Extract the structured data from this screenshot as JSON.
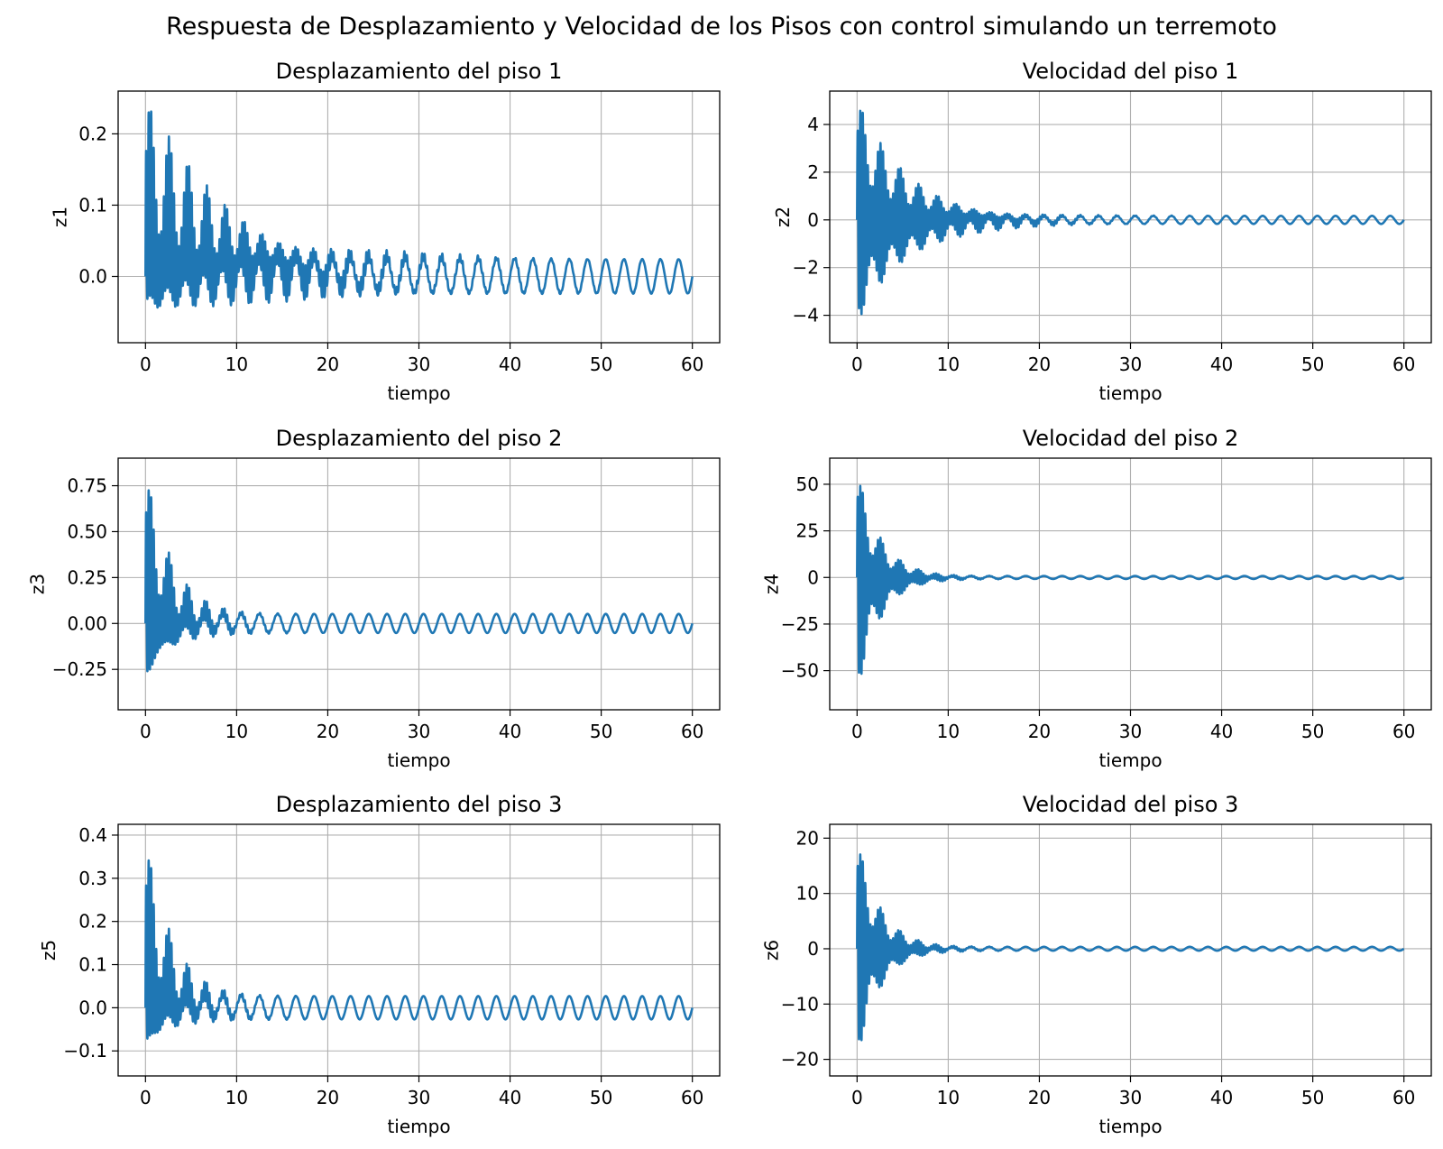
{
  "figure_title": "Respuesta de Desplazamiento y Velocidad de los Pisos con control simulando un terremoto",
  "colors": {
    "series": "#1f77b4",
    "grid": "#b0b0b0",
    "axes": "#000000"
  },
  "chart_data": [
    {
      "type": "line",
      "title": "Desplazamiento del piso 1",
      "xlabel": "tiempo",
      "ylabel": "z1",
      "xlim": [
        -3,
        63
      ],
      "ylim": [
        -0.093,
        0.26
      ],
      "grid": true,
      "xticks": [
        0,
        10,
        20,
        30,
        40,
        50,
        60
      ],
      "xtick_labels": [
        "0",
        "10",
        "20",
        "30",
        "40",
        "50",
        "60"
      ],
      "yticks": [
        0.0,
        0.1,
        0.2
      ],
      "ytick_labels": [
        "0.0",
        "0.1",
        "0.2"
      ],
      "series": [
        {
          "x_range": [
            0,
            60
          ],
          "initial_max": 0.25,
          "initial_min": -0.078,
          "steady_amplitude": 0.024,
          "steady_offset": 0.0,
          "steady_period": 2.0,
          "decay_time": 10.0
        }
      ]
    },
    {
      "type": "line",
      "title": "Velocidad del piso 1",
      "xlabel": "tiempo",
      "ylabel": "z2",
      "xlim": [
        -3,
        63
      ],
      "ylim": [
        -5.15,
        5.4
      ],
      "grid": true,
      "xticks": [
        0,
        10,
        20,
        30,
        40,
        50,
        60
      ],
      "xtick_labels": [
        "0",
        "10",
        "20",
        "30",
        "40",
        "50",
        "60"
      ],
      "yticks": [
        -4,
        -2,
        0,
        2,
        4
      ],
      "ytick_labels": [
        "−4",
        "−2",
        "0",
        "2",
        "4"
      ],
      "series": [
        {
          "x_range": [
            0,
            60
          ],
          "initial_max": 5.1,
          "initial_min": -4.7,
          "steady_amplitude": 0.17,
          "steady_offset": 0.0,
          "steady_period": 2.0,
          "decay_time": 5.5
        }
      ]
    },
    {
      "type": "line",
      "title": "Desplazamiento del piso 2",
      "xlabel": "tiempo",
      "ylabel": "z3",
      "xlim": [
        -3,
        63
      ],
      "ylim": [
        -0.47,
        0.9
      ],
      "grid": true,
      "xticks": [
        0,
        10,
        20,
        30,
        40,
        50,
        60
      ],
      "xtick_labels": [
        "0",
        "10",
        "20",
        "30",
        "40",
        "50",
        "60"
      ],
      "yticks": [
        -0.25,
        0.0,
        0.25,
        0.5,
        0.75
      ],
      "ytick_labels": [
        "−0.25",
        "0.00",
        "0.25",
        "0.50",
        "0.75"
      ],
      "series": [
        {
          "x_range": [
            0,
            60
          ],
          "initial_max": 0.85,
          "initial_min": -0.41,
          "steady_amplitude": 0.052,
          "steady_offset": 0.0,
          "steady_period": 2.0,
          "decay_time": 3.0
        }
      ]
    },
    {
      "type": "line",
      "title": "Velocidad del piso 2",
      "xlabel": "tiempo",
      "ylabel": "z4",
      "xlim": [
        -3,
        63
      ],
      "ylim": [
        -71,
        64
      ],
      "grid": true,
      "xticks": [
        0,
        10,
        20,
        30,
        40,
        50,
        60
      ],
      "xtick_labels": [
        "0",
        "10",
        "20",
        "30",
        "40",
        "50",
        "60"
      ],
      "yticks": [
        -50,
        -25,
        0,
        25,
        50
      ],
      "ytick_labels": [
        "−50",
        "−25",
        "0",
        "25",
        "50"
      ],
      "series": [
        {
          "x_range": [
            0,
            60
          ],
          "initial_max": 59,
          "initial_min": -65,
          "steady_amplitude": 0.8,
          "steady_offset": 0.0,
          "steady_period": 2.0,
          "decay_time": 2.5
        }
      ]
    },
    {
      "type": "line",
      "title": "Desplazamiento del piso 3",
      "xlabel": "tiempo",
      "ylabel": "z5",
      "xlim": [
        -3,
        63
      ],
      "ylim": [
        -0.158,
        0.425
      ],
      "grid": true,
      "xticks": [
        0,
        10,
        20,
        30,
        40,
        50,
        60
      ],
      "xtick_labels": [
        "0",
        "10",
        "20",
        "30",
        "40",
        "50",
        "60"
      ],
      "yticks": [
        -0.1,
        0.0,
        0.1,
        0.2,
        0.3,
        0.4
      ],
      "ytick_labels": [
        "−0.1",
        "0.0",
        "0.1",
        "0.2",
        "0.3",
        "0.4"
      ],
      "series": [
        {
          "x_range": [
            0,
            60
          ],
          "initial_max": 0.4,
          "initial_min": -0.135,
          "steady_amplitude": 0.027,
          "steady_offset": 0.0,
          "steady_period": 2.0,
          "decay_time": 3.0
        }
      ]
    },
    {
      "type": "line",
      "title": "Velocidad del piso 3",
      "xlabel": "tiempo",
      "ylabel": "z6",
      "xlim": [
        -3,
        63
      ],
      "ylim": [
        -23,
        22.5
      ],
      "grid": true,
      "xticks": [
        0,
        10,
        20,
        30,
        40,
        50,
        60
      ],
      "xtick_labels": [
        "0",
        "10",
        "20",
        "30",
        "40",
        "50",
        "60"
      ],
      "yticks": [
        -20,
        -10,
        0,
        10,
        20
      ],
      "ytick_labels": [
        "−20",
        "−10",
        "0",
        "10",
        "20"
      ],
      "series": [
        {
          "x_range": [
            0,
            60
          ],
          "initial_max": 20.5,
          "initial_min": -21,
          "steady_amplitude": 0.35,
          "steady_offset": 0.0,
          "steady_period": 2.0,
          "decay_time": 2.5
        }
      ]
    }
  ]
}
